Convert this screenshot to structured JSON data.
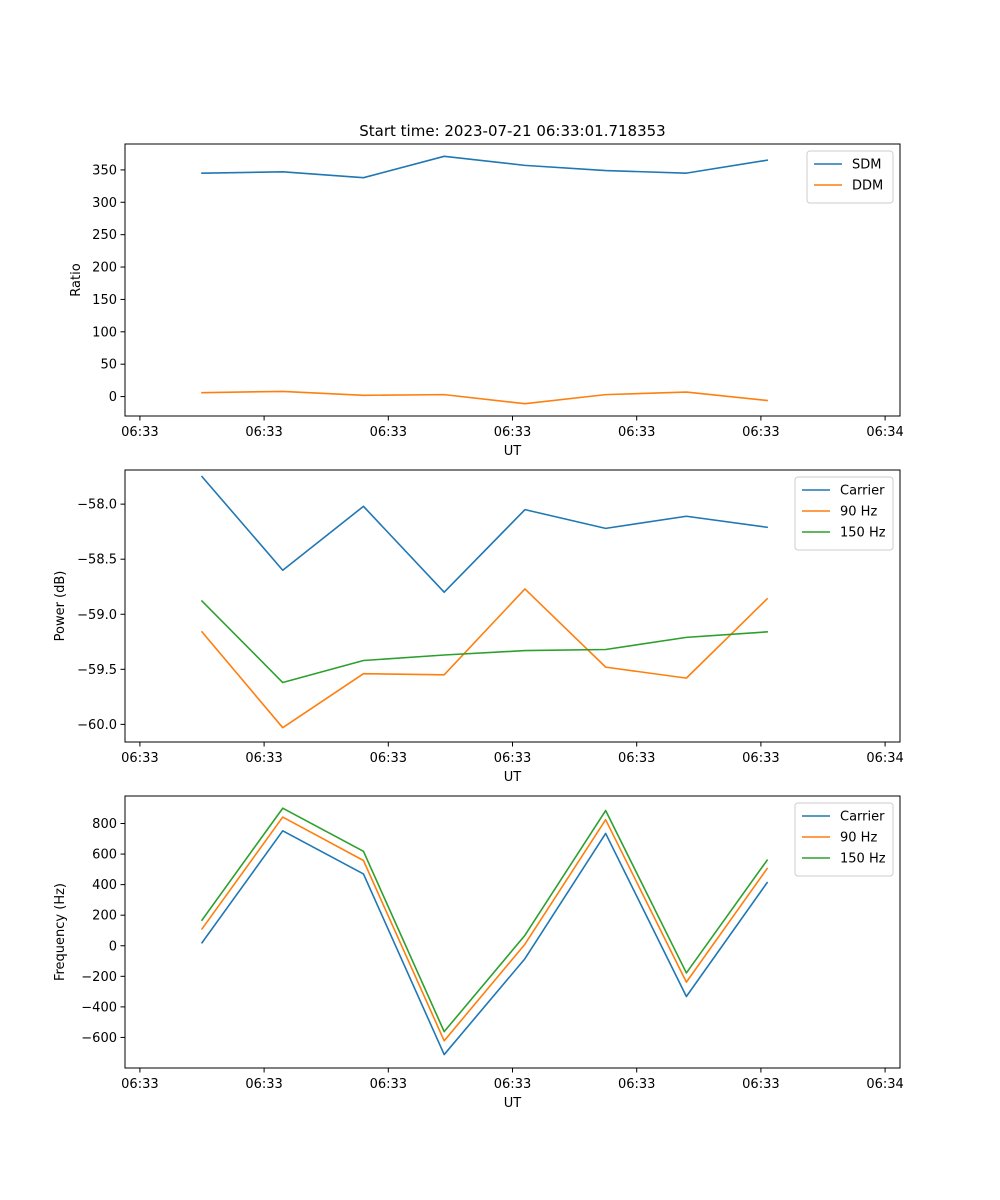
{
  "chart_data": {
    "title": "Start time: 2023-07-21 06:33:01.718353",
    "panels": [
      {
        "type": "line",
        "xlabel": "UT",
        "ylabel": "Ratio",
        "x_tick_labels": [
          "06:33",
          "06:33",
          "06:33",
          "06:33",
          "06:33",
          "06:33",
          "06:34"
        ],
        "y_ticks": [
          0,
          50,
          100,
          150,
          200,
          250,
          300,
          350
        ],
        "ylim": [
          -30,
          390
        ],
        "xlim": [
          -0.12,
          6.12
        ],
        "legend": "upper right",
        "series": [
          {
            "name": "SDM",
            "color": "#1f77b4",
            "x": [
              0.5,
              1.15,
              1.8,
              2.45,
              3.1,
              3.75,
              4.4,
              5.05
            ],
            "values": [
              345,
              347,
              338,
              371,
              357,
              349,
              345,
              365
            ]
          },
          {
            "name": "DDM",
            "color": "#ff7f0e",
            "x": [
              0.5,
              1.15,
              1.8,
              2.45,
              3.1,
              3.75,
              4.4,
              5.05
            ],
            "values": [
              6,
              8,
              2,
              3,
              -11,
              3,
              7,
              -6
            ]
          }
        ]
      },
      {
        "type": "line",
        "xlabel": "UT",
        "ylabel": "Power (dB)",
        "x_tick_labels": [
          "06:33",
          "06:33",
          "06:33",
          "06:33",
          "06:33",
          "06:33",
          "06:34"
        ],
        "y_ticks": [
          -60.0,
          -59.5,
          -59.0,
          -58.5,
          -58.0
        ],
        "y_tick_labels": [
          "−60.0",
          "−59.5",
          "−59.0",
          "−58.5",
          "−58.0"
        ],
        "ylim": [
          -60.16,
          -57.69
        ],
        "xlim": [
          -0.12,
          6.12
        ],
        "legend": "upper right",
        "series": [
          {
            "name": "Carrier",
            "color": "#1f77b4",
            "x": [
              0.5,
              1.15,
              1.8,
              2.45,
              3.1,
              3.75,
              4.4,
              5.05
            ],
            "values": [
              -57.75,
              -58.6,
              -58.02,
              -58.8,
              -58.05,
              -58.22,
              -58.11,
              -58.21
            ]
          },
          {
            "name": "90 Hz",
            "color": "#ff7f0e",
            "x": [
              0.5,
              1.15,
              1.8,
              2.45,
              3.1,
              3.75,
              4.4,
              5.05
            ],
            "values": [
              -59.16,
              -60.03,
              -59.54,
              -59.55,
              -58.77,
              -59.48,
              -59.58,
              -58.86
            ]
          },
          {
            "name": "150 Hz",
            "color": "#2ca02c",
            "x": [
              0.5,
              1.15,
              1.8,
              2.45,
              3.1,
              3.75,
              4.4,
              5.05
            ],
            "values": [
              -58.88,
              -59.62,
              -59.42,
              -59.37,
              -59.33,
              -59.32,
              -59.21,
              -59.16
            ]
          }
        ]
      },
      {
        "type": "line",
        "xlabel": "UT",
        "ylabel": "Frequency (Hz)",
        "x_tick_labels": [
          "06:33",
          "06:33",
          "06:33",
          "06:33",
          "06:33",
          "06:33",
          "06:34"
        ],
        "y_ticks": [
          -600,
          -400,
          -200,
          0,
          200,
          400,
          600,
          800
        ],
        "y_tick_labels": [
          "−600",
          "−400",
          "−200",
          "0",
          "200",
          "400",
          "600",
          "800"
        ],
        "ylim": [
          -800,
          980
        ],
        "xlim": [
          -0.12,
          6.12
        ],
        "legend": "upper right",
        "series": [
          {
            "name": "Carrier",
            "color": "#1f77b4",
            "x": [
              0.5,
              1.15,
              1.8,
              2.45,
              3.1,
              3.75,
              4.4,
              5.05
            ],
            "values": [
              20,
              752,
              470,
              -712,
              -85,
              735,
              -332,
              413
            ]
          },
          {
            "name": "90 Hz",
            "color": "#ff7f0e",
            "x": [
              0.5,
              1.15,
              1.8,
              2.45,
              3.1,
              3.75,
              4.4,
              5.05
            ],
            "values": [
              110,
              842,
              558,
              -622,
              10,
              825,
              -238,
              505
            ]
          },
          {
            "name": "150 Hz",
            "color": "#2ca02c",
            "x": [
              0.5,
              1.15,
              1.8,
              2.45,
              3.1,
              3.75,
              4.4,
              5.05
            ],
            "values": [
              168,
              900,
              618,
              -562,
              68,
              885,
              -178,
              560
            ]
          }
        ]
      }
    ]
  }
}
